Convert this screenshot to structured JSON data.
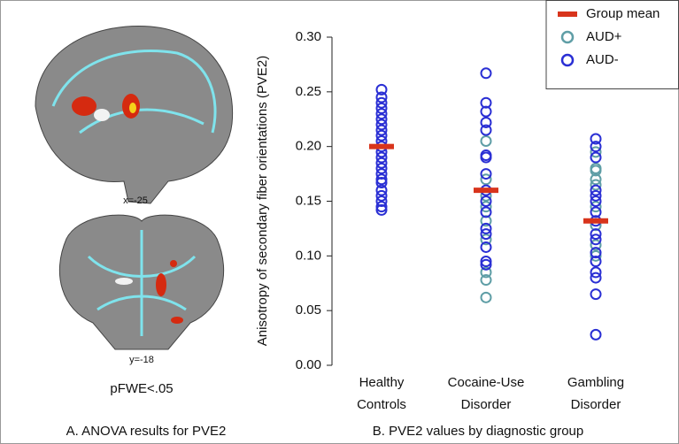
{
  "panel_a": {
    "sagittal_label": "x=-25",
    "coronal_label": "y=-18",
    "threshold": "pFWE<.05",
    "caption": "A. ANOVA results for PVE2"
  },
  "chart_data": {
    "type": "strip",
    "caption": "B. PVE2 values by diagnostic group",
    "y_label": "Anisotropy of secondary fiber orientations (PVE2)",
    "categories": [
      "Healthy Controls",
      "Cocaine-Use Disorder",
      "Gambling Disorder"
    ],
    "ylim": [
      0,
      0.3
    ],
    "yticks": [
      {
        "value": 0,
        "label": "0.00"
      },
      {
        "value": 0.05,
        "label": "0.05"
      },
      {
        "value": 0.1,
        "label": "0.10"
      },
      {
        "value": 0.15,
        "label": "0.15"
      },
      {
        "value": 0.2,
        "label": "0.20"
      },
      {
        "value": 0.25,
        "label": "0.25"
      },
      {
        "value": 0.3,
        "label": "0.30"
      }
    ],
    "legend": "upper right",
    "series": [
      {
        "name": "Group mean",
        "color": "#d8341c",
        "marker": "bar",
        "values": [
          0.2,
          0.16,
          0.132
        ]
      },
      {
        "name": "AUD+",
        "color": "#5f9ea6",
        "marker": "circle",
        "values": [
          [],
          [
            0.205,
            0.17,
            0.155,
            0.145,
            0.132,
            0.115,
            0.085,
            0.078,
            0.062
          ],
          [
            0.195,
            0.18,
            0.178,
            0.17,
            0.165,
            0.145,
            0.128,
            0.11,
            0.1
          ]
        ]
      },
      {
        "name": "AUD-",
        "color": "#2a2fd4",
        "marker": "circle",
        "values": [
          [
            0.252,
            0.245,
            0.24,
            0.235,
            0.23,
            0.225,
            0.22,
            0.215,
            0.21,
            0.205,
            0.2,
            0.195,
            0.19,
            0.185,
            0.18,
            0.175,
            0.17,
            0.167,
            0.16,
            0.155,
            0.15,
            0.145,
            0.142
          ],
          [
            0.267,
            0.24,
            0.232,
            0.222,
            0.215,
            0.192,
            0.19,
            0.175,
            0.16,
            0.15,
            0.14,
            0.125,
            0.12,
            0.108,
            0.095,
            0.092
          ],
          [
            0.207,
            0.2,
            0.19,
            0.16,
            0.155,
            0.15,
            0.14,
            0.132,
            0.12,
            0.115,
            0.103,
            0.095,
            0.085,
            0.08,
            0.065,
            0.028
          ]
        ]
      }
    ]
  }
}
